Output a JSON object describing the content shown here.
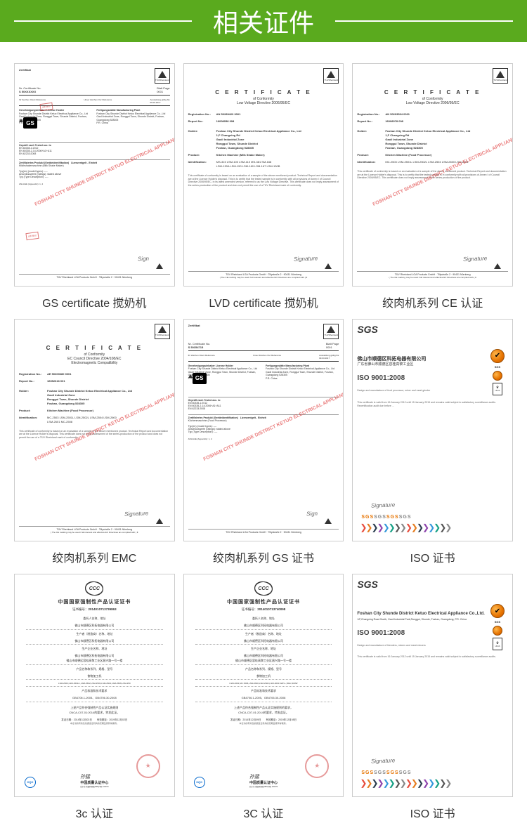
{
  "header": {
    "title": "相关证件"
  },
  "birds_colors": [
    "#e74c3c",
    "#e67e22",
    "#2c3e50",
    "#8e44ad",
    "#3498db",
    "#16a085",
    "#555",
    "#888"
  ],
  "certs": [
    {
      "caption": "GS certificate 搅奶机",
      "type": "zertifikat",
      "zert_label": "Zertifikat",
      "no_label": "Nr. Certificate No.",
      "no": "S 50XXXXXX",
      "holder": "Foshan City Shunde District Ketuo Electrical Appliance Co., Ltd",
      "addr": "Gaoli Industrial Zone, Ronggui Town, Shunde District, Foshan, Guangdong 528305",
      "product": "Milchshakemaschine (Milk Shake Maker)",
      "gs": true,
      "watermark": "FOSHAN CITY SHUNDE DISTRICT KETUO ELECTRICAL APPLIANCE CO.,LTD",
      "stamp_sm": "资料备份",
      "footer": "TÜV Rheinland LGA Products GmbH · Tillystraße 2 · 90431 Nürnberg"
    },
    {
      "caption": "LVD certificate 搅奶机",
      "type": "tuv",
      "title": "C E R T I F I C A T E",
      "sub1": "of Conformity",
      "sub2": "Low Voltage Directive 2006/95/EC",
      "reg_label": "Registration No.:",
      "reg": "AN 50289420 0001",
      "rep_label": "Report No.:",
      "rep": "16008058 008",
      "holder_label": "Holder:",
      "holder": "Foshan City Shunde District Ketuo Electrical Appliance Co., Ltd\n1,F Changxing Rd\nGaoli Industrial Zone\nRonggui Town, Shunde District\nFoshan, Guangdong 528305",
      "prod_label": "Product:",
      "prod": "Kitchen Machine (Milk Shake Maker)",
      "ident_label": "Identification:",
      "ident": "MS-315  LSM-100  LSM-110  MS-381  SM-168\nLSM-130A  LSM-150  LSM-160  LSM-167  LSM-130B",
      "para": "This certificate of conformity is based on an evaluation of a sample of the above mentioned product. Technical Report and documentation are at the Licence Holder's disposal. This is to certify that the tested sample is in conformity with all provisions of Annex I of Council Directive 2006/95/EC, in its latest amended version, referred to as the Low Voltage Directive. This certificate does not imply assessment of the series-production of the product and does not permit the use of a TÜV Rheinland mark of conformity.",
      "footer": "TÜV Rheinland LGA Products GmbH · Tillystraße 2 · 90431 Nürnberg",
      "ce_note": "The CE marking may be used if all relevant and effective EC Directives are complied with"
    },
    {
      "caption": "绞肉机系列 CE 认证",
      "type": "tuv",
      "title": "C E R T I F I C A T E",
      "sub1": "of Conformity",
      "sub2": "Low Voltage Directive 2006/95/EC",
      "reg_label": "Registration No.:",
      "reg": "AN 50293504 0001",
      "rep_label": "Report No.:",
      "rep": "16008078 008",
      "holder_label": "Holder:",
      "holder": "Foshan City Shunde District Ketuo Electrical Appliance Co., Ltd\n1,F Changxing Rd\nGaoli Industrial Zone\nRonggui Town, Shunde District\nFoshan, Guangdong 528305",
      "prod_label": "Product:",
      "prod": "Kitchen Machine (Food Processor)",
      "ident_label": "Identification:",
      "ident": "MC-2503  LSM-2501L  LSM-2502L  LSM-2504  LSM-2600  LSM-2601",
      "para": "This certificate of conformity is based on an evaluation of a sample of the above mentioned product. Technical Report and documentation are at the Licence Holder's disposal. This is to certify that the tested sample is in conformity with all provisions of Annex I of Council Directive 2006/95/EC. This certificate does not imply assessment of the series-production of the product.",
      "watermark": "FOSHAN CITY SHUNDE DISTRICT KETUO ELECTRICAL APPLIANCE CO.,LTD",
      "footer": "TÜV Rheinland LGA Products GmbH · Tillystraße 2 · 90431 Nürnberg",
      "ce_note": "The CE marking may be used if all relevant and effective EC Directives are complied with"
    },
    {
      "caption": "绞肉机系列 EMC",
      "type": "tuv",
      "title": "C E R T I F I C A T E",
      "sub1": "of Conformity",
      "sub2": "EC Council Directive 2004/108/EC\nElectromagnetic Compatibility",
      "reg_label": "Registration No.:",
      "reg": "AE 50300680 0001",
      "rep_label": "Report No.:",
      "rep": "16052616 001",
      "holder_label": "Holder:",
      "holder": "Foshan City Shunde District Ketuo Electrical Appliance Co., Ltd\nGaoli Industrial Zone\nRonggui Town, Shunde District\nFoshan, Guangdong 528305",
      "prod_label": "Product:",
      "prod": "Kitchen Machine (Food Processor)",
      "ident_label": "Identification:",
      "ident": "MC-2503  LSM-2501L  LSM-2502L  LSM-2504  LSM-2600\nLSM-2601  MC-2508",
      "para": "This certificate of conformity is based on an evaluation of a sample of the above mentioned product. Technical Report and documentation are at the Licence Holder's disposal. This certificate does not imply assessment of the series-production of the product and does not permit the use of a TÜV Rheinland mark of conformity.",
      "watermark": "FOSHAN CITY SHUNDE DISTRICT KETUO ELECTRICAL APPLIANCE CO.,LTD",
      "footer": "TÜV Rheinland LGA Products GmbH · Tillystraße 2 · 90431 Nürnberg",
      "ce_note": "The CE marking may be used if all relevant and effective EC Directives are complied with"
    },
    {
      "caption": "绞肉机系列 GS 证书",
      "type": "zertifikat",
      "zert_label": "Zertifikat",
      "no_label": "Nr. Certificate No.",
      "no": "S 50354715",
      "holder": "Foshan City Shunde District Ketuo Electrical Appliance Co., Ltd",
      "addr": "Gaoli Industrial Zone, Ronggui Town, Shunde District, Foshan, Guangdong 528305",
      "product": "Küchenmaschine (Food Processor)",
      "gs": true,
      "watermark": "FOSHAN CITY SHUNDE DISTRICT KETUO ELECTRICAL APPLIANCE CO.,LTD",
      "footer": "TÜV Rheinland LGA Products GmbH · Tillystraße 2 · 90431 Nürnberg"
    },
    {
      "caption": "ISO 证书",
      "type": "sgs",
      "brand": "SGS",
      "company_cn": "佛山市顺德区科拓电器有限公司",
      "company_addr_cn": "广东省佛山市顺德区容桂高黎工业区",
      "iso": "ISO 9001:2008",
      "scope": "Design and manufacture of food processor, mixer and meat grinder",
      "text": "This certificate is valid from 16 January 2012 until 15 January 2015 and remains valid subject to satisfactory surveillance audits. Recertification audit due before ...",
      "ukas": "UKAS"
    },
    {
      "caption": "3c 认证",
      "type": "ccc",
      "title": "中国国家强制性产品认证证书",
      "no_label": "证书编号：",
      "no": "2014010713739863",
      "f1_label": "委托人名称、地址",
      "f1": "佛山市顺德区科拓电器有限公司",
      "f2_label": "生产者（制造商）名称、地址",
      "f2": "佛山市顺德区科拓电器有限公司",
      "f3_label": "生产企业名称、地址",
      "f3": "佛山市顺德区科拓电器有限公司\n佛山市顺德区容桂高黎工业区昌兴路一号一楼",
      "f4_label": "产品名称和系列、规格、型号",
      "f4": "食物加工机",
      "f5": "LSM-2503,LSM-2501/L,LSM-2502,LSM-2503,LSM-2504,LSM-2506,LSM-250",
      "f6_label": "产品标准和技术要求",
      "f6": "GB4706.1-2005、GB4706.30-2008",
      "f7": "上述产品符合强制性产品认证实施规则\nCNCA-C07-01:2014的要求，特发此证。",
      "date": "发证日期：2014年12月03日　　有效期至：2019年12月02日",
      "note": "本证书的有效性依据发证机构的定期监督获得保持。",
      "center": "中国质量认证中心",
      "cqc": "CQC"
    },
    {
      "caption": "3C 认证",
      "type": "ccc",
      "title": "中国国家强制性产品认证证书",
      "no_label": "证书编号：",
      "no": "2014010713740098",
      "f1_label": "委托人名称、地址",
      "f1": "佛山市顺德区科拓电器有限公司",
      "f2_label": "生产者（制造商）名称、地址",
      "f2": "佛山市顺德区科拓电器有限公司",
      "f3_label": "生产企业名称、地址",
      "f3": "佛山市顺德区科拓电器有限公司\n佛山市顺德区容桂高黎工业区昌兴路一号一楼",
      "f4_label": "产品名称和系列、规格、型号",
      "f4": "食物加工机",
      "f5": "LSM-2601,MC 2506,LSM-2600,LSM-2602,LSM-2603 220V~,50Hz,400W",
      "f6_label": "产品标准和技术要求",
      "f6": "GB4706.1-2005、GB4706.30-2008",
      "f7": "上述产品符合强制性产品认证实施规则的要求，\nCNCA-C07-01:2014的要求，特发此证。",
      "date": "发证日期：2014年12月09日　　有效期至：2019年12月08日",
      "note": "本证书的有效性依据发证机构的定期监督获得保持。",
      "center": "中国质量认证中心",
      "cqc": "CQC"
    },
    {
      "caption": "ISO 证书",
      "type": "sgs",
      "brand": "SGS",
      "company_en": "Foshan City Shunde District Ketuo Electrical Appliance Co.,Ltd.",
      "company_addr_en": "1/F,Changxing Road South, Gaoli Industrial Park,Ronggui, Shunde, Foshan, Guangdong, P.R. China",
      "iso": "ISO 9001:2008",
      "scope": "Design and manufacture of blenders, mixers and meat mincers",
      "text": "This certificate is valid from 16 January 2012 until 15 January 2015 and remains valid subject to satisfactory surveillance audits.",
      "ukas": "UKAS"
    }
  ]
}
